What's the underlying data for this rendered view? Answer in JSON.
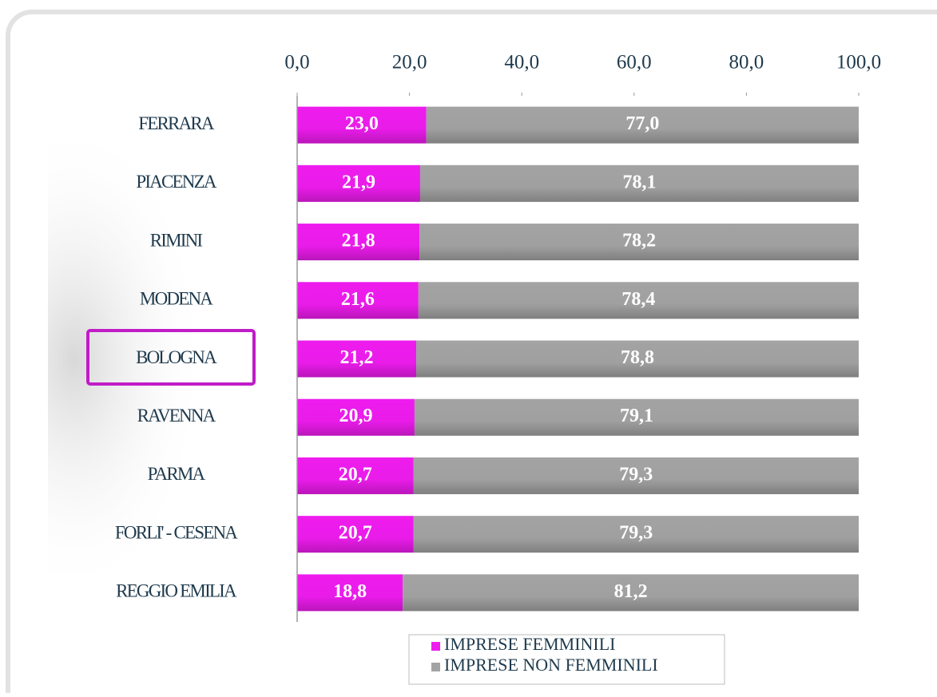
{
  "chart_data": {
    "type": "stacked-bar-horizontal",
    "categories": [
      "FERRARA",
      "PIACENZA",
      "RIMINI",
      "MODENA",
      "BOLOGNA",
      "RAVENNA",
      "PARMA",
      "FORLI' - CESENA",
      "REGGIO EMILIA"
    ],
    "series": [
      {
        "name": "IMPRESE FEMMINILI",
        "color": "#ee1cee",
        "values": [
          23.0,
          21.9,
          21.8,
          21.6,
          21.2,
          20.9,
          20.7,
          20.7,
          18.8
        ],
        "value_labels": [
          "23,0",
          "21,9",
          "21,8",
          "21,6",
          "21,2",
          "20,9",
          "20,7",
          "20,7",
          "18,8"
        ]
      },
      {
        "name": "IMPRESE NON FEMMINILI",
        "color": "#a3a3a3",
        "values": [
          77.0,
          78.1,
          78.2,
          78.4,
          78.8,
          79.1,
          79.3,
          79.3,
          81.2
        ],
        "value_labels": [
          "77,0",
          "78,1",
          "78,2",
          "78,4",
          "78,8",
          "79,1",
          "79,3",
          "79,3",
          "81,2"
        ]
      }
    ],
    "xlim": [
      0,
      100
    ],
    "xticks": [
      {
        "value": 0,
        "label": "0,0"
      },
      {
        "value": 20,
        "label": "20,0"
      },
      {
        "value": 40,
        "label": "40,0"
      },
      {
        "value": 60,
        "label": "60,0"
      },
      {
        "value": 80,
        "label": "80,0"
      },
      {
        "value": 100,
        "label": "100,0"
      }
    ],
    "legend": "bottom"
  }
}
